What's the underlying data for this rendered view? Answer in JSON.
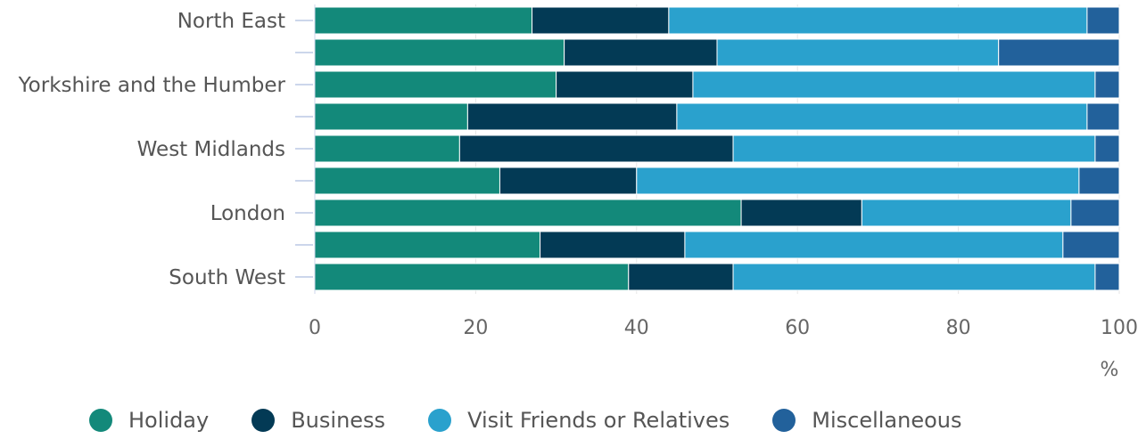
{
  "chart_data": {
    "type": "bar",
    "orientation": "horizontal",
    "stacked": true,
    "categories": [
      "North East",
      "",
      "Yorkshire and the Humber",
      "",
      "West Midlands",
      "",
      "London",
      "",
      "South West"
    ],
    "series": [
      {
        "name": "Holiday",
        "color": "#13897a",
        "values": [
          27,
          31,
          30,
          19,
          18,
          23,
          53,
          28,
          39
        ]
      },
      {
        "name": "Business",
        "color": "#033a55",
        "values": [
          17,
          19,
          17,
          26,
          34,
          17,
          15,
          18,
          13
        ]
      },
      {
        "name": "Visit Friends or Relatives",
        "color": "#2aa1cd",
        "values": [
          52,
          35,
          50,
          51,
          45,
          55,
          26,
          47,
          45
        ]
      },
      {
        "name": "Miscellaneous",
        "color": "#22619b",
        "values": [
          4,
          15,
          3,
          4,
          3,
          5,
          6,
          7,
          3
        ]
      }
    ],
    "xlim": [
      0,
      100
    ],
    "xticks": [
      "0",
      "20",
      "40",
      "60",
      "80",
      "100"
    ],
    "xlabel": "%",
    "legend_position": "bottom"
  }
}
